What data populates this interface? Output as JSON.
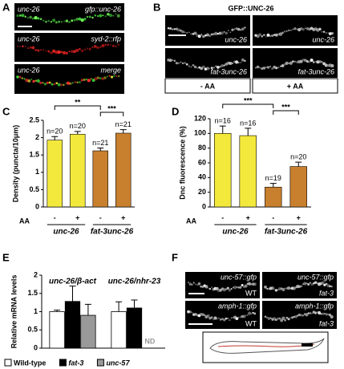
{
  "panel_labels": [
    "A",
    "B",
    "C",
    "D",
    "E",
    "F"
  ],
  "panel_a": {
    "rows": [
      {
        "left": "unc-26",
        "right": "gfp::unc-26"
      },
      {
        "left": "unc-26",
        "right": "syd-2::rfp"
      },
      {
        "left": "unc-26",
        "right": "merge"
      }
    ]
  },
  "panel_b": {
    "title": "GFP::UNC-26",
    "images": [
      "unc-26",
      "unc-26",
      "fat-3unc-26",
      "fat-3unc-26"
    ],
    "conditions": [
      "- AA",
      "+ AA"
    ]
  },
  "panel_f": {
    "images": [
      {
        "marker": "unc-57::gfp",
        "genotype": "WT"
      },
      {
        "marker": "unc-57::gfp",
        "genotype": "fat-3"
      },
      {
        "marker": "amph-1::gfp",
        "genotype": "WT"
      },
      {
        "marker": "amph-1::gfp",
        "genotype": "fat-3"
      }
    ]
  },
  "chart_data": [
    {
      "type": "bar",
      "ylabel": "Density (puncta/10μm)",
      "xlabel": "AA",
      "categories": [
        "-",
        "+",
        "-",
        "+"
      ],
      "groups": [
        "unc-26",
        "fat-3unc-26"
      ],
      "values": [
        1.93,
        2.1,
        1.62,
        2.13
      ],
      "errors": [
        0.1,
        0.08,
        0.08,
        0.1
      ],
      "n_labels": [
        "n=20",
        "n=20",
        "n=21",
        "n=21"
      ],
      "colors": [
        "#f3e93c",
        "#f3e93c",
        "#c8802e",
        "#c8802e"
      ],
      "annotations": [
        {
          "text": "**",
          "from": 0,
          "to": 2
        },
        {
          "text": "***",
          "from": 2,
          "to": 3
        }
      ],
      "ylim": [
        0,
        2.5
      ],
      "yticks": [
        0,
        0.5,
        1,
        1.5,
        2,
        2.5
      ]
    },
    {
      "type": "bar",
      "ylabel": "Dnc fluorescence (%)",
      "xlabel": "AA",
      "categories": [
        "-",
        "+",
        "-",
        "+"
      ],
      "groups": [
        "unc-26",
        "fat-3unc-26"
      ],
      "values": [
        100,
        97,
        27,
        55
      ],
      "errors": [
        10,
        10,
        5,
        6
      ],
      "n_labels": [
        "n=16",
        "n=16",
        "n=19",
        "n=20"
      ],
      "colors": [
        "#f3e93c",
        "#f3e93c",
        "#c8802e",
        "#c8802e"
      ],
      "annotations": [
        {
          "text": "***",
          "from": 0,
          "to": 2
        },
        {
          "text": "***",
          "from": 2,
          "to": 3
        }
      ],
      "ylim": [
        0,
        120
      ],
      "yticks": [
        0,
        20,
        40,
        60,
        80,
        100,
        120
      ]
    },
    {
      "type": "bar",
      "ylabel": "Relative mRNA levels",
      "categories": [
        "unc-26/β-act",
        "unc-26/nhr-23"
      ],
      "series": [
        {
          "name": "Wild-type",
          "color": "#ffffff",
          "values": [
            1.0,
            1.0
          ],
          "errors": [
            0.04,
            0.27
          ]
        },
        {
          "name": "fat-3",
          "color": "#000000",
          "values": [
            1.28,
            1.1
          ],
          "errors": [
            0.42,
            0.22
          ]
        },
        {
          "name": "unc-57",
          "color": "#999999",
          "values": [
            0.9,
            null
          ],
          "errors": [
            0.3,
            null
          ]
        }
      ],
      "missing_label": "ND",
      "ylim": [
        0,
        2
      ],
      "yticks": [
        0,
        0.5,
        1,
        1.5,
        2
      ]
    }
  ]
}
